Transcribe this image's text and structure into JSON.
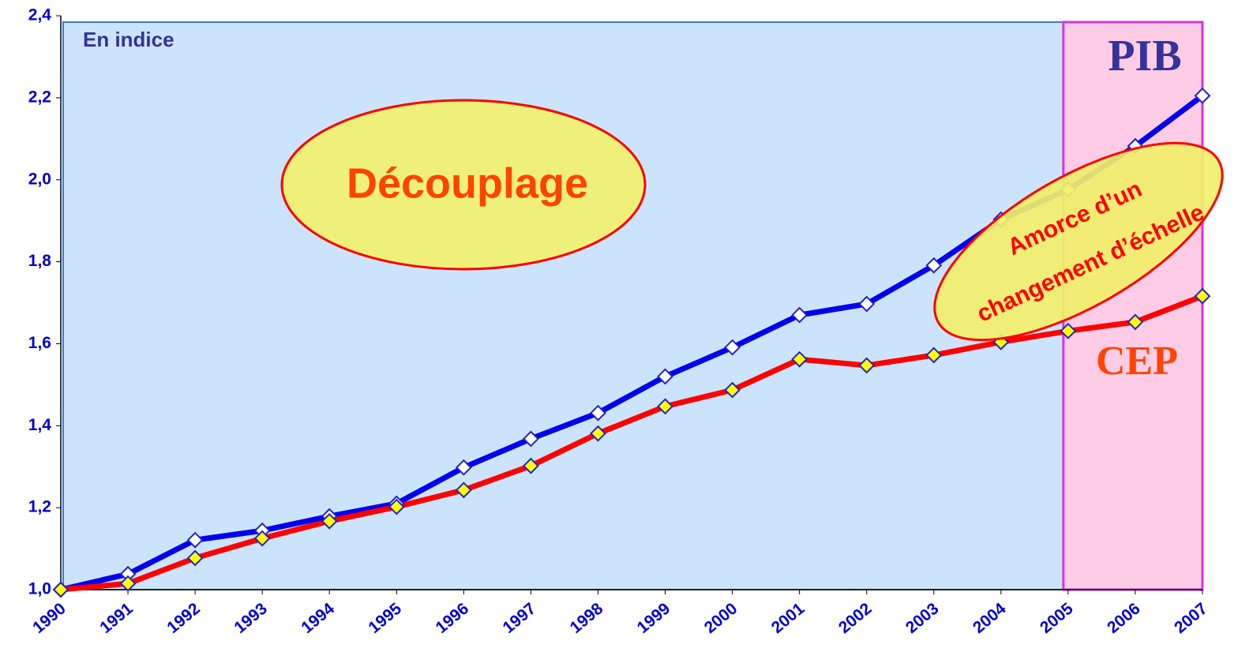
{
  "chart_data": {
    "type": "line",
    "categories": [
      "1990",
      "1991",
      "1992",
      "1993",
      "1994",
      "1995",
      "1996",
      "1997",
      "1998",
      "1999",
      "2000",
      "2001",
      "2002",
      "2003",
      "2004",
      "2005",
      "2006",
      "2007"
    ],
    "series": [
      {
        "name": "PIB",
        "color": "#0000ee",
        "marker_fill": "#ffffff",
        "values": [
          1.0,
          1.038,
          1.121,
          1.144,
          1.179,
          1.21,
          1.298,
          1.368,
          1.431,
          1.52,
          1.591,
          1.67,
          1.697,
          1.791,
          1.903,
          1.976,
          2.082,
          2.205
        ]
      },
      {
        "name": "CEP",
        "color": "#ff0000",
        "marker_fill": "#ffff00",
        "values": [
          1.0,
          1.015,
          1.077,
          1.125,
          1.167,
          1.202,
          1.243,
          1.302,
          1.381,
          1.447,
          1.487,
          1.562,
          1.547,
          1.572,
          1.604,
          1.631,
          1.653,
          1.716
        ]
      }
    ],
    "ylim": [
      1.0,
      2.4
    ],
    "yticks": [
      {
        "value": 1.0,
        "label": "1,0"
      },
      {
        "value": 1.2,
        "label": "1,2"
      },
      {
        "value": 1.4,
        "label": "1,4"
      },
      {
        "value": 1.6,
        "label": "1,6"
      },
      {
        "value": 1.8,
        "label": "1,8"
      },
      {
        "value": 2.0,
        "label": "2,0"
      },
      {
        "value": 2.2,
        "label": "2,2"
      },
      {
        "value": 2.4,
        "label": "2,4"
      }
    ],
    "annotations": [
      "En indice",
      "Découplage",
      "Amorce d’un",
      "changement d’échelle"
    ]
  }
}
